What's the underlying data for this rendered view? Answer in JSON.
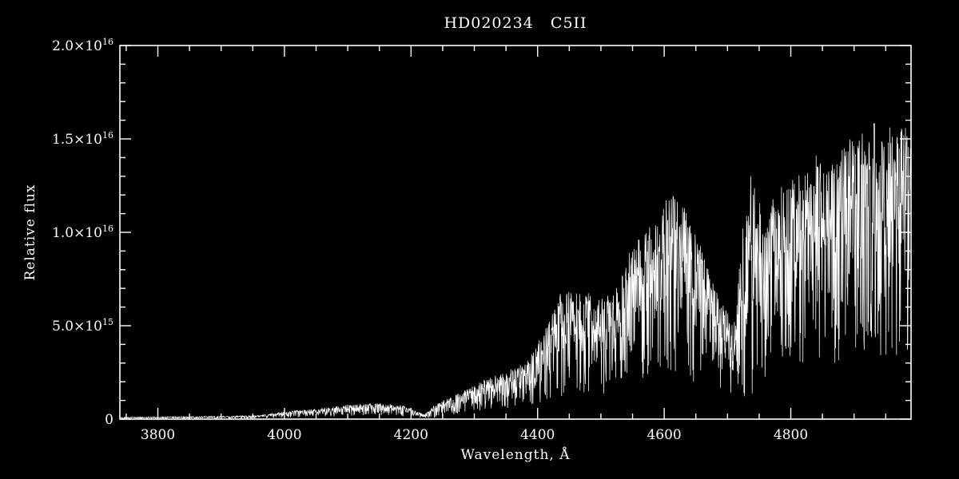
{
  "chart_data": {
    "type": "line",
    "title": "HD020234   C5II",
    "xlabel": "Wavelength, Å",
    "ylabel": "Relative flux",
    "xlim": [
      3740,
      4990
    ],
    "ylim": [
      0,
      2e+16
    ],
    "x_major_ticks": [
      3800,
      4000,
      4200,
      4400,
      4600,
      4800
    ],
    "x_minor_step": 50,
    "y_major_ticks": [
      0,
      5000000000000000.0,
      1e+16,
      1.5e+16,
      2e+16
    ],
    "y_tick_labels": [
      "0",
      "5.0×10^15",
      "1.0×10^16",
      "1.5×10^16",
      "2.0×10^16"
    ],
    "y_minor_step": 1000000000000000.0,
    "grid": false,
    "legend": "none",
    "background_color": "#000000",
    "axis_color": "#ffffff",
    "line_color": "#ffffff",
    "series": [
      {
        "name": "HD020234 spectrum",
        "description": "Noisy stellar spectrum of carbon star HD020234 (C5II): flux near zero from 3750-3950 A, slow rise with small bumps to ~4200 A, sharp dip near 4220 A, then steeply rising spiky emission envelope with band structure, local maxima near 4620 A (~1.25e16), a depression around 4660-4710 A, a tall spike near 4735 A (~1.4e16), and dense spikes reaching the overall maximum ~1.6e16 near 4930 A",
        "envelope": {
          "wavelength_A": [
            3740,
            3800,
            3900,
            3960,
            4000,
            4050,
            4100,
            4150,
            4190,
            4220,
            4240,
            4270,
            4300,
            4330,
            4360,
            4385,
            4410,
            4440,
            4470,
            4500,
            4530,
            4560,
            4590,
            4615,
            4640,
            4665,
            4690,
            4710,
            4735,
            4755,
            4780,
            4810,
            4840,
            4870,
            4900,
            4930,
            4955,
            4975,
            4990
          ],
          "flux_low_1e15": [
            0.02,
            0.02,
            0.03,
            0.03,
            0.06,
            0.1,
            0.15,
            0.2,
            0.15,
            0.02,
            0.1,
            0.25,
            0.35,
            0.45,
            0.5,
            0.7,
            0.9,
            1.2,
            1.3,
            1.2,
            1.5,
            1.8,
            2.0,
            2.4,
            2.0,
            1.4,
            1.0,
            0.9,
            1.2,
            1.8,
            2.6,
            2.8,
            3.0,
            3.0,
            3.2,
            3.4,
            3.0,
            3.6,
            3.0
          ],
          "flux_high_1e15": [
            0.1,
            0.12,
            0.15,
            0.2,
            0.4,
            0.55,
            0.75,
            0.85,
            0.7,
            0.25,
            0.8,
            1.3,
            1.8,
            2.3,
            2.6,
            3.2,
            4.5,
            7.0,
            6.8,
            6.2,
            7.6,
            9.8,
            10.8,
            12.6,
            11.0,
            8.5,
            6.0,
            5.0,
            13.9,
            10.5,
            12.2,
            12.8,
            13.6,
            14.2,
            15.2,
            16.1,
            15.0,
            15.6,
            14.5
          ]
        }
      }
    ]
  }
}
